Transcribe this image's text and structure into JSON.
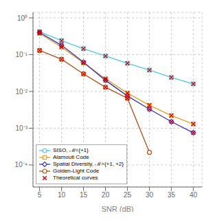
{
  "chart_data": {
    "type": "line",
    "xlabel": "SNR (dB)",
    "xlim": [
      3.5,
      42
    ],
    "xticks": [
      5,
      10,
      15,
      20,
      25,
      30,
      35,
      40
    ],
    "ylim": [
      2.5118864315095795e-05,
      1.4125375446227544
    ],
    "yticks": [
      {
        "value": 0.0001,
        "label": "10⁻⁴"
      },
      {
        "value": 0.001,
        "label": "10⁻³"
      },
      {
        "value": 0.01,
        "label": "10⁻²"
      },
      {
        "value": 0.1,
        "label": "10⁻¹"
      },
      {
        "value": 1,
        "label": "10⁰"
      }
    ],
    "log": "y",
    "grid": true,
    "legend": "lower left",
    "series": [
      {
        "name": "SISO, ℳ={+1}",
        "color": "#4DC8E8",
        "marker": "circle",
        "line_style": "solid",
        "x": [
          5,
          10,
          15,
          20,
          25,
          30,
          35,
          40
        ],
        "values": [
          0.42,
          0.24,
          0.145,
          0.092,
          0.058,
          0.038,
          0.024,
          0.016
        ]
      },
      {
        "name": "Alamouti Code",
        "color": "#E8A020",
        "marker": "square",
        "line_style": "solid",
        "x": [
          5,
          10,
          15,
          20,
          25,
          30,
          35,
          40
        ],
        "values": [
          0.38,
          0.16,
          0.06,
          0.022,
          0.009,
          0.0042,
          0.0022,
          0.0013
        ]
      },
      {
        "name": "Spatial Diversity, ℳ={+1, +2}",
        "color": "#3030C8",
        "marker": "diamond",
        "line_style": "solid",
        "x": [
          5,
          10,
          15,
          20,
          25,
          30,
          35,
          40
        ],
        "values": [
          0.4,
          0.18,
          0.062,
          0.02,
          0.0075,
          0.0033,
          0.0015,
          0.00075
        ]
      },
      {
        "name": "Golden-Light Code",
        "color": "#B05010",
        "marker": "circle",
        "line_style": "solid",
        "x": [
          5,
          10,
          15,
          20,
          25,
          30
        ],
        "values": [
          0.13,
          0.075,
          0.03,
          0.013,
          0.0065,
          0.00022
        ]
      },
      {
        "name": "Theoretical curves",
        "type": "scatter",
        "color": "#CC0000",
        "marker": "x",
        "line_style": "none",
        "x": [
          5,
          10,
          15,
          20,
          25,
          30,
          35,
          40,
          5,
          10,
          15,
          20,
          25,
          30,
          35,
          40,
          5,
          10,
          15,
          20,
          25,
          30,
          35,
          40,
          5,
          10,
          15,
          20,
          25
        ],
        "values": [
          0.42,
          0.24,
          0.145,
          0.092,
          0.058,
          0.038,
          0.024,
          0.016,
          0.38,
          0.16,
          0.06,
          0.022,
          0.009,
          0.0042,
          0.0022,
          0.0013,
          0.4,
          0.18,
          0.062,
          0.02,
          0.0075,
          0.0033,
          0.0015,
          0.00075,
          0.13,
          0.075,
          0.03,
          0.013,
          0.0065
        ]
      }
    ]
  }
}
